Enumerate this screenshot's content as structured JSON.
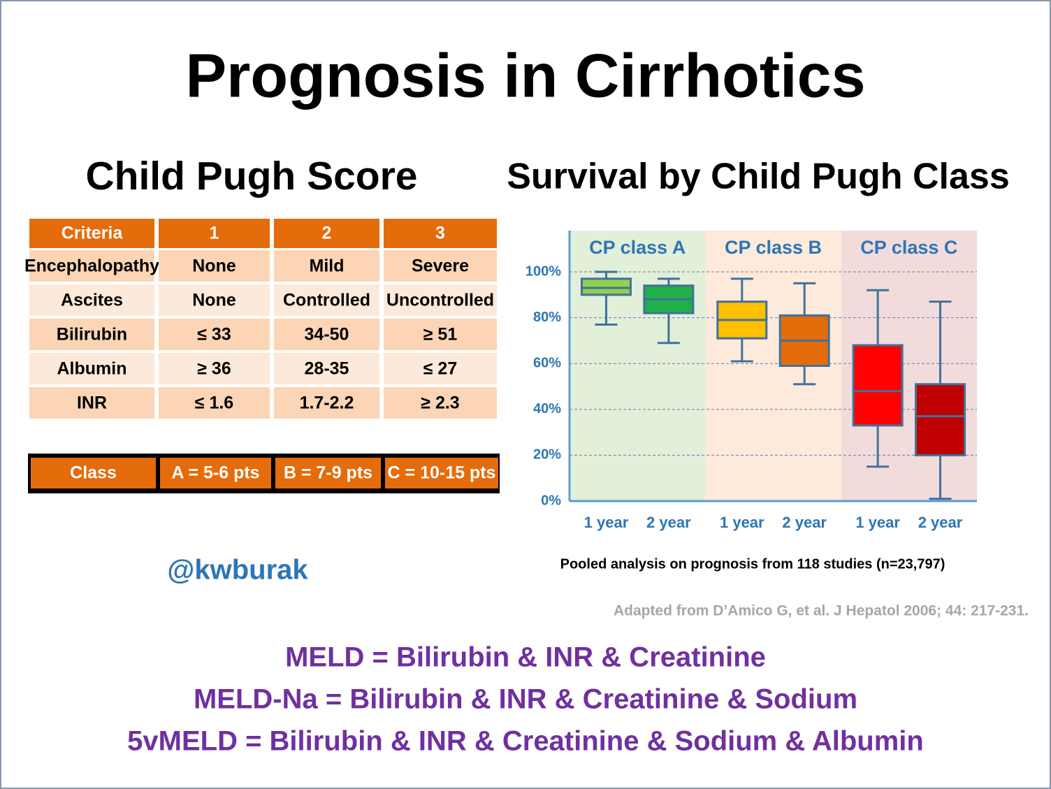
{
  "title": "Prognosis in Cirrhotics",
  "child_pugh": {
    "title": "Child Pugh Score",
    "header": [
      "Criteria",
      "1",
      "2",
      "3"
    ],
    "rows": [
      [
        "Encephalopathy",
        "None",
        "Mild",
        "Severe"
      ],
      [
        "Ascites",
        "None",
        "Controlled",
        "Uncontrolled"
      ],
      [
        "Bilirubin",
        "≤ 33",
        "34-50",
        "≥ 51"
      ],
      [
        "Albumin",
        "≥ 36",
        "28-35",
        "≤ 27"
      ],
      [
        "INR",
        "≤ 1.6",
        "1.7-2.2",
        "≥ 2.3"
      ]
    ],
    "class_row": [
      "Class",
      "A = 5-6 pts",
      "B = 7-9 pts",
      "C = 10-15 pts"
    ]
  },
  "handle": "@kwburak",
  "chart_data": {
    "type": "box",
    "title": "Survival by Child Pugh Class",
    "groups": [
      {
        "name": "CP class A",
        "shade": "#e2efd9",
        "categories": [
          "1 year",
          "2 year"
        ],
        "boxes": [
          {
            "color": "#92d050",
            "min": 77,
            "q1": 90,
            "median": 93,
            "q3": 97,
            "max": 100
          },
          {
            "color": "#1fb04a",
            "min": 69,
            "q1": 82,
            "median": 88,
            "q3": 94,
            "max": 97
          }
        ]
      },
      {
        "name": "CP class B",
        "shade": "#fdeadb",
        "categories": [
          "1 year",
          "2 year"
        ],
        "boxes": [
          {
            "color": "#ffc000",
            "min": 61,
            "q1": 71,
            "median": 79,
            "q3": 87,
            "max": 97
          },
          {
            "color": "#e46c0a",
            "min": 51,
            "q1": 59,
            "median": 70,
            "q3": 81,
            "max": 95
          }
        ]
      },
      {
        "name": "CP class C",
        "shade": "#f2dcdb",
        "categories": [
          "1 year",
          "2 year"
        ],
        "boxes": [
          {
            "color": "#ff0000",
            "min": 15,
            "q1": 33,
            "median": 48,
            "q3": 68,
            "max": 92
          },
          {
            "color": "#c00000",
            "min": 1,
            "q1": 20,
            "median": 37,
            "q3": 51,
            "max": 87
          }
        ]
      }
    ],
    "ylim": [
      0,
      118
    ],
    "yticks": [
      {
        "value": 0,
        "label": "0%"
      },
      {
        "value": 20,
        "label": "20%"
      },
      {
        "value": 40,
        "label": "40%"
      },
      {
        "value": 60,
        "label": "60%"
      },
      {
        "value": 80,
        "label": "80%"
      },
      {
        "value": 100,
        "label": "100%"
      }
    ],
    "grid": true,
    "caption": "Pooled analysis on prognosis from 118 studies (n=23,797)"
  },
  "citation": "Adapted from D’Amico G, et al. J Hepatol 2006; 44: 217-231.",
  "meld": [
    "MELD = Bilirubin & INR & Creatinine",
    "MELD-Na = Bilirubin & INR & Creatinine & Sodium",
    "5vMELD = Bilirubin & INR & Creatinine & Sodium & Albumin"
  ]
}
